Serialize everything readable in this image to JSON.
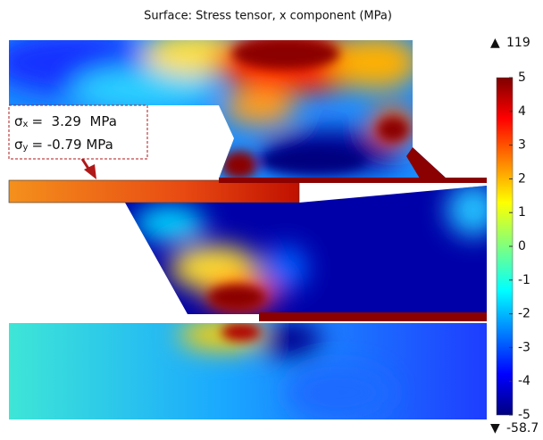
{
  "chart_data": {
    "type": "surface",
    "title": "Surface: Stress tensor, x component (MPa)",
    "colorbar": {
      "ylim": [
        -5,
        5
      ],
      "yticks": [
        -5,
        -4,
        -3,
        -2,
        -1,
        0,
        1,
        2,
        3,
        4,
        5
      ],
      "max": 119,
      "min": -58.7
    },
    "annotations": [
      {
        "symbol": "σ",
        "subscript": "x",
        "text": "=  3.29  MPa"
      },
      {
        "symbol": "σ",
        "subscript": "y",
        "text": "= -0.79 MPa"
      }
    ]
  }
}
